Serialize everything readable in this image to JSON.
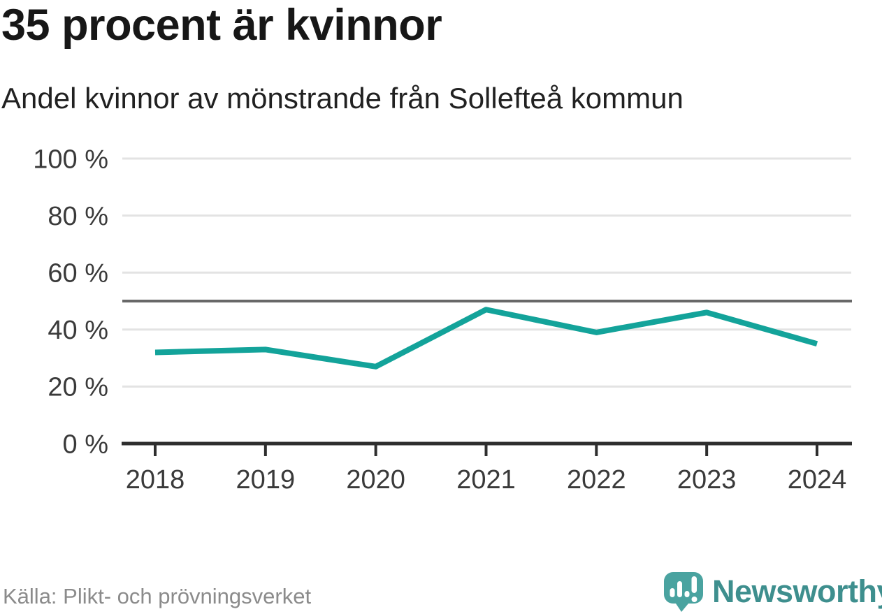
{
  "header": {
    "title": "35 procent är kvinnor",
    "subtitle": "Andel kvinnor av mönstrande från Sollefteå kommun"
  },
  "chart_data": {
    "type": "line",
    "title": "35 procent är kvinnor",
    "subtitle": "Andel kvinnor av mönstrande från Sollefteå kommun",
    "categories": [
      "2018",
      "2019",
      "2020",
      "2021",
      "2022",
      "2023",
      "2024"
    ],
    "series": [
      {
        "name": "Andel kvinnor av mönstrande, Sollefteå kommun",
        "values": [
          32,
          33,
          27,
          47,
          39,
          46,
          35
        ]
      }
    ],
    "unit": "%",
    "xlabel": "",
    "ylabel": "",
    "ylim": [
      0,
      100
    ],
    "y_ticks": [
      {
        "value": 0,
        "label": "0 %"
      },
      {
        "value": 20,
        "label": "20 %"
      },
      {
        "value": 40,
        "label": "40 %"
      },
      {
        "value": 60,
        "label": "60 %"
      },
      {
        "value": 80,
        "label": "80 %"
      },
      {
        "value": 100,
        "label": "100 %"
      }
    ],
    "reference_line": {
      "value": 50,
      "color": "#686868"
    },
    "grid": true,
    "legend": false,
    "line_color": "#13a39a",
    "gridline_color": "#e3e3e3",
    "axis_color": "#2e2e2e"
  },
  "footer": {
    "source": "Källa: Plikt- och prövningsverket",
    "brand": "Newsworthy",
    "brand_color": "#3e8f8e",
    "logo_color": "#4aa3a0"
  }
}
